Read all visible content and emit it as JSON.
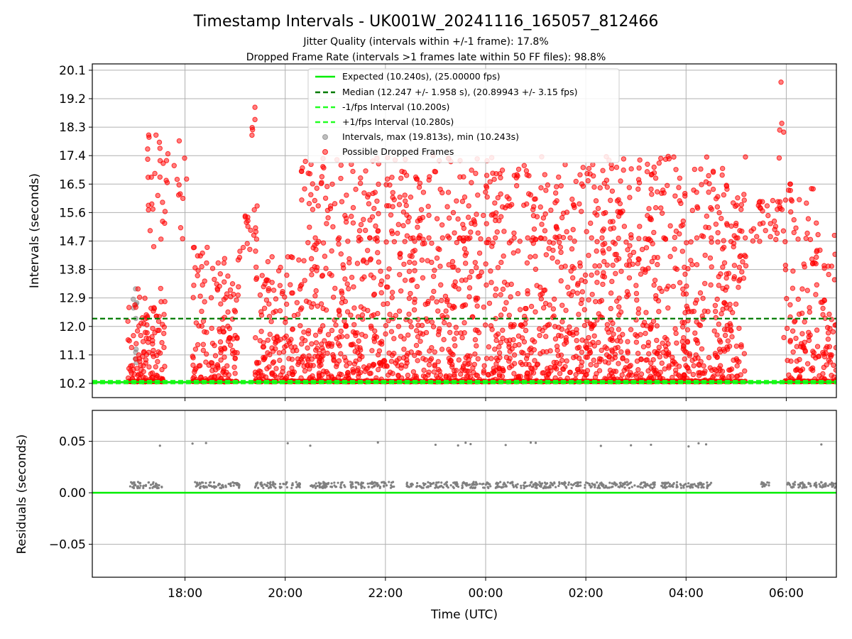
{
  "figure": {
    "title": "Timestamp Intervals - UK001W_20241116_165057_812466",
    "subtitle_1": "Jitter Quality (intervals within +/-1 frame): 17.8%",
    "subtitle_2": "Dropped Frame Rate (intervals >1 frames late within 50 FF files): 98.8%"
  },
  "colors": {
    "expected": "#00ee00",
    "median": "#007a00",
    "fps_band": "#22ff22",
    "dropped": "#ff0000",
    "intervals": "#808080",
    "grid": "#b0b0b0"
  },
  "chart_data": [
    {
      "type": "scatter",
      "ylabel": "Intervals (seconds)",
      "yticks": [
        "10.2",
        "11.1",
        "12.0",
        "12.9",
        "13.8",
        "14.7",
        "15.6",
        "16.5",
        "17.4",
        "18.3",
        "19.2",
        "20.1"
      ],
      "ytick_values": [
        10.2,
        11.1,
        12.0,
        12.9,
        13.8,
        14.7,
        15.6,
        16.5,
        17.4,
        18.3,
        19.2,
        20.1
      ],
      "ylim": [
        9.75,
        20.3
      ],
      "xlim_hours": [
        16.15,
        31.0
      ],
      "grid": true,
      "legend_position": "upper center",
      "reference_lines": [
        {
          "name": "Expected (10.240s), (25.00000 fps)",
          "y": 10.24,
          "style": "solid"
        },
        {
          "name": "Median (12.247 +/- 1.958 s), (20.89943 +/- 3.15 fps)",
          "y": 12.247,
          "style": "dashed"
        },
        {
          "name": "-1/fps Interval (10.200s)",
          "y": 10.2,
          "style": "dashed"
        },
        {
          "name": "+1/fps Interval (10.280s)",
          "y": 10.28,
          "style": "dashed"
        }
      ],
      "series": [
        {
          "name": "Intervals, max (19.813s), min (10.243s)",
          "max": 19.813,
          "min": 10.243
        },
        {
          "name": "Possible Dropped Frames"
        }
      ],
      "segments": [
        {
          "start": 16.85,
          "end": 17.6,
          "ylow": 10.25,
          "yhigh": 13.2
        },
        {
          "start": 17.25,
          "end": 18.05,
          "ylow": 14.5,
          "yhigh": 18.2
        },
        {
          "start": 18.15,
          "end": 19.1,
          "ylow": 10.25,
          "yhigh": 14.5
        },
        {
          "start": 19.1,
          "end": 19.45,
          "ylow": 14.3,
          "yhigh": 15.9
        },
        {
          "start": 19.3,
          "end": 19.4,
          "ylow": 17.5,
          "yhigh": 19.3
        },
        {
          "start": 19.4,
          "end": 20.3,
          "ylow": 10.25,
          "yhigh": 14.2
        },
        {
          "start": 20.3,
          "end": 29.2,
          "ylow": 10.25,
          "yhigh": 14.8
        },
        {
          "start": 20.3,
          "end": 29.2,
          "ylow": 14.6,
          "yhigh": 17.4
        },
        {
          "start": 29.3,
          "end": 29.95,
          "ylow": 14.6,
          "yhigh": 16.0
        },
        {
          "start": 29.95,
          "end": 30.6,
          "ylow": 10.25,
          "yhigh": 16.5
        },
        {
          "start": 29.85,
          "end": 29.95,
          "ylow": 16.0,
          "yhigh": 19.8
        },
        {
          "start": 30.6,
          "end": 31.0,
          "ylow": 10.25,
          "yhigh": 15.0
        }
      ]
    },
    {
      "type": "scatter",
      "ylabel": "Residuals (seconds)",
      "yticks": [
        "0.05",
        "0.00",
        "−0.05"
      ],
      "ytick_values": [
        0.05,
        0.0,
        -0.05
      ],
      "ylim": [
        -0.082,
        0.08
      ],
      "xlabel": "Time (UTC)",
      "xticks": [
        "18:00",
        "20:00",
        "22:00",
        "00:00",
        "02:00",
        "04:00",
        "06:00"
      ],
      "xtick_hours": [
        18,
        20,
        22,
        24,
        26,
        28,
        30
      ],
      "xlim_hours": [
        16.15,
        31.0
      ],
      "grid": true,
      "baseline": 0.0,
      "residual_level": 0.0075,
      "outlier_level": 0.047,
      "clusters": [
        {
          "start": 16.9,
          "end": 17.55
        },
        {
          "start": 18.2,
          "end": 19.1
        },
        {
          "start": 19.4,
          "end": 20.3
        },
        {
          "start": 20.45,
          "end": 21.2
        },
        {
          "start": 21.3,
          "end": 22.2
        },
        {
          "start": 22.4,
          "end": 24.1
        },
        {
          "start": 24.2,
          "end": 25.8
        },
        {
          "start": 25.8,
          "end": 27.4
        },
        {
          "start": 27.5,
          "end": 28.5
        },
        {
          "start": 29.5,
          "end": 29.7
        },
        {
          "start": 30.0,
          "end": 30.6
        },
        {
          "start": 30.6,
          "end": 31.0
        }
      ],
      "outliers_hours": [
        17.5,
        18.15,
        18.42,
        20.05,
        20.5,
        21.85,
        23.0,
        23.45,
        23.6,
        23.7,
        24.4,
        24.9,
        25.0,
        26.3,
        26.9,
        27.3,
        28.05,
        28.25,
        28.4,
        30.7
      ]
    }
  ]
}
